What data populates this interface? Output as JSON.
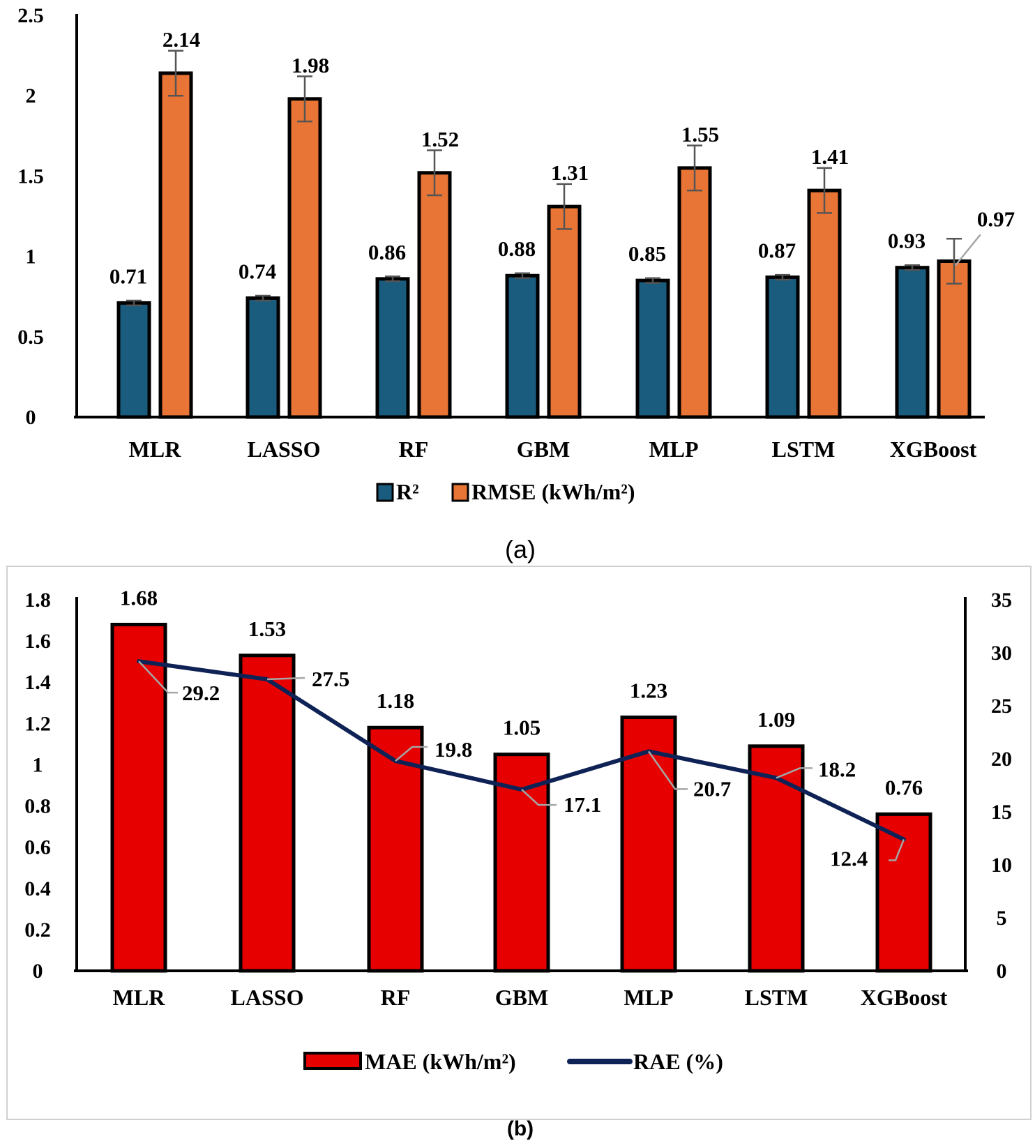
{
  "figure": {
    "caption_a": "(a)",
    "caption_b": "(b)"
  },
  "colors": {
    "r2": "#1a5c7e",
    "rmse": "#e87535",
    "mae": "#e60000",
    "rae": "#0f2256",
    "bar_outline": "#000000",
    "error_bar": "#555555",
    "leader": "#a6a6a6",
    "panel_border": "#d0d0d0"
  },
  "chart_data": [
    {
      "id": "a",
      "type": "bar",
      "categories": [
        "MLR",
        "LASSO",
        "RF",
        "GBM",
        "MLP",
        "LSTM",
        "XGBoost"
      ],
      "series": [
        {
          "name": "R²",
          "values": [
            0.71,
            0.74,
            0.86,
            0.88,
            0.85,
            0.87,
            0.93
          ],
          "errors": [
            0.015,
            0.015,
            0.015,
            0.015,
            0.015,
            0.015,
            0.015
          ],
          "labels": [
            "0.71",
            "0.74",
            "0.86",
            "0.88",
            "0.85",
            "0.87",
            "0.93"
          ]
        },
        {
          "name": "RMSE (kWh/m²)",
          "values": [
            2.14,
            1.98,
            1.52,
            1.31,
            1.55,
            1.41,
            0.97
          ],
          "errors": [
            0.14,
            0.14,
            0.14,
            0.14,
            0.14,
            0.14,
            0.14
          ],
          "labels": [
            "2.14",
            "1.98",
            "1.52",
            "1.31",
            "1.55",
            "1.41",
            "0.97"
          ]
        }
      ],
      "ylim": [
        0,
        2.5
      ],
      "yticks": [
        "0",
        "0.5",
        "1",
        "1.5",
        "2",
        "2.5"
      ],
      "legend": [
        "R²",
        "RMSE (kWh/m²)"
      ],
      "legend_position": "bottom"
    },
    {
      "id": "b",
      "type": "bar",
      "categories": [
        "MLR",
        "LASSO",
        "RF",
        "GBM",
        "MLP",
        "LSTM",
        "XGBoost"
      ],
      "series": [
        {
          "name": "MAE (kWh/m²)",
          "axis": "left",
          "values": [
            1.68,
            1.53,
            1.18,
            1.05,
            1.23,
            1.09,
            0.76
          ],
          "labels": [
            "1.68",
            "1.53",
            "1.18",
            "1.05",
            "1.23",
            "1.09",
            "0.76"
          ]
        },
        {
          "name": "RAE (%)",
          "type": "line",
          "axis": "right",
          "values": [
            29.2,
            27.5,
            19.8,
            17.1,
            20.7,
            18.2,
            12.4
          ],
          "labels": [
            "29.2",
            "27.5",
            "19.8",
            "17.1",
            "20.7",
            "18.2",
            "12.4"
          ]
        }
      ],
      "ylim": [
        0,
        1.8
      ],
      "yticks": [
        "0",
        "0.2",
        "0.4",
        "0.6",
        "0.8",
        "1",
        "1.2",
        "1.4",
        "1.6",
        "1.8"
      ],
      "y2lim": [
        0,
        35
      ],
      "y2ticks": [
        "0",
        "5",
        "10",
        "15",
        "20",
        "25",
        "30",
        "35"
      ],
      "legend": [
        "MAE (kWh/m²)",
        "RAE (%)"
      ],
      "legend_position": "bottom"
    }
  ]
}
